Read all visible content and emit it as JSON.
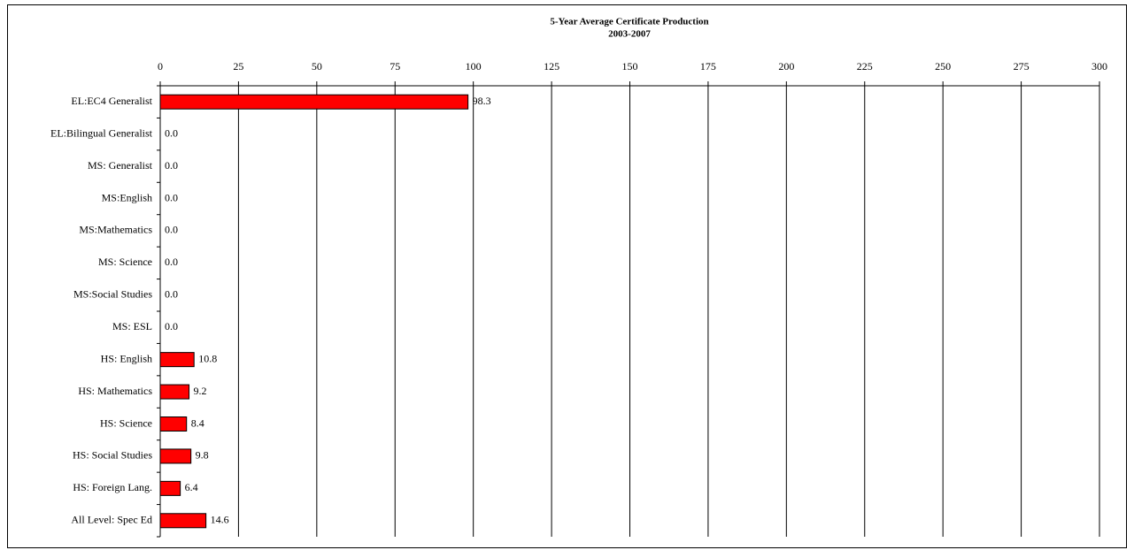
{
  "chart_data": {
    "type": "bar",
    "orientation": "horizontal",
    "title": "5-Year Average Certificate Production",
    "subtitle": "2003-2007",
    "categories": [
      "EL:EC4 Generalist",
      "EL:Bilingual Generalist",
      "MS: Generalist",
      "MS:English",
      "MS:Mathematics",
      "MS: Science",
      "MS:Social Studies",
      "MS: ESL",
      "HS: English",
      "HS: Mathematics",
      "HS: Science",
      "HS: Social Studies",
      "HS: Foreign Lang.",
      "All Level:  Spec Ed"
    ],
    "values": [
      98.3,
      0,
      0,
      0,
      0,
      0,
      0,
      0,
      10.8,
      9.2,
      8.4,
      9.8,
      6.4,
      14.6
    ],
    "value_labels": [
      "98.3",
      "0.0",
      "0.0",
      "0.0",
      "0.0",
      "0.0",
      "0.0",
      "0.0",
      "10.8",
      "9.2",
      "8.4",
      "9.8",
      "6.4",
      "14.6"
    ],
    "color": "#ff0000",
    "xlim": [
      0,
      300
    ],
    "xticks": [
      0,
      25,
      50,
      75,
      100,
      125,
      150,
      175,
      200,
      225,
      250,
      275,
      300
    ],
    "grid": true
  }
}
